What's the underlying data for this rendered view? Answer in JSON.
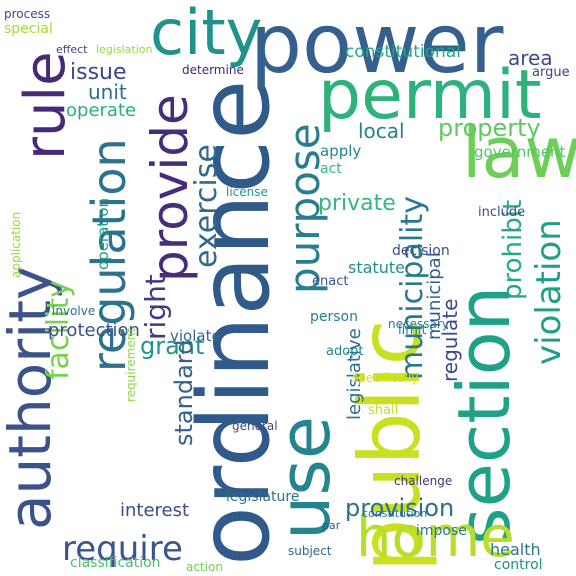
{
  "words": [
    {
      "text": "ordinance",
      "color": "#2f5a8a"
    },
    {
      "text": "power",
      "color": "#355f8d"
    },
    {
      "text": "public",
      "color": "#c8e020"
    },
    {
      "text": "section",
      "color": "#1fa187"
    },
    {
      "text": "use",
      "color": "#25848e"
    },
    {
      "text": "permit",
      "color": "#2db27d"
    },
    {
      "text": "authority",
      "color": "#3b528b"
    },
    {
      "text": "rule",
      "color": "#482878"
    },
    {
      "text": "regulation",
      "color": "#2c728e"
    },
    {
      "text": "city",
      "color": "#21918c"
    },
    {
      "text": "provide",
      "color": "#472c7a"
    },
    {
      "text": "law",
      "color": "#6ece58"
    },
    {
      "text": "purpose",
      "color": "#287d8e"
    },
    {
      "text": "home",
      "color": "#b5de2b"
    },
    {
      "text": "violation",
      "color": "#1f9e89"
    },
    {
      "text": "municipality",
      "color": "#2a788e"
    },
    {
      "text": "require",
      "color": "#39568c"
    },
    {
      "text": "right",
      "color": "#453781"
    },
    {
      "text": "facility",
      "color": "#7ad151"
    },
    {
      "text": "exercise",
      "color": "#31688e"
    },
    {
      "text": "prohibit",
      "color": "#23a983"
    },
    {
      "text": "property",
      "color": "#5ec962"
    },
    {
      "text": "issue",
      "color": "#414487"
    },
    {
      "text": "grant",
      "color": "#1f968b"
    },
    {
      "text": "standard",
      "color": "#34618d"
    },
    {
      "text": "provision",
      "color": "#2d708e"
    },
    {
      "text": "private",
      "color": "#35b779"
    },
    {
      "text": "local",
      "color": "#26828e"
    },
    {
      "text": "area",
      "color": "#3e4989"
    },
    {
      "text": "regulate",
      "color": "#3f4889"
    },
    {
      "text": "municipal",
      "color": "#365c8d"
    },
    {
      "text": "legislative",
      "color": "#2e6e8e"
    },
    {
      "text": "government",
      "color": "#54c568"
    },
    {
      "text": "constitutional",
      "color": "#22a884"
    },
    {
      "text": "unit",
      "color": "#2e6f8e"
    },
    {
      "text": "operate",
      "color": "#29af7f"
    },
    {
      "text": "protection",
      "color": "#3b528b"
    },
    {
      "text": "interest",
      "color": "#3e4a89"
    },
    {
      "text": "operation",
      "color": "#1e9c89"
    },
    {
      "text": "statute",
      "color": "#21918c"
    },
    {
      "text": "health",
      "color": "#2b758e"
    },
    {
      "text": "impose",
      "color": "#2a768e"
    },
    {
      "text": "control",
      "color": "#228d8d"
    },
    {
      "text": "violate",
      "color": "#30698e"
    },
    {
      "text": "decision",
      "color": "#3c4f8a"
    },
    {
      "text": "determine",
      "color": "#482475"
    },
    {
      "text": "application",
      "color": "#9bd93c"
    },
    {
      "text": "special",
      "color": "#a8db34"
    },
    {
      "text": "process",
      "color": "#3f4788"
    },
    {
      "text": "requirement",
      "color": "#8bd646"
    },
    {
      "text": "legislature",
      "color": "#2d708e"
    },
    {
      "text": "classification",
      "color": "#4ac16d"
    },
    {
      "text": "person",
      "color": "#287c8e"
    },
    {
      "text": "apply",
      "color": "#25848e"
    },
    {
      "text": "act",
      "color": "#38b977"
    },
    {
      "text": "limit",
      "color": "#27808e"
    },
    {
      "text": "adopt",
      "color": "#24878e"
    },
    {
      "text": "enact",
      "color": "#3a548c"
    },
    {
      "text": "license",
      "color": "#1f988b"
    },
    {
      "text": "include",
      "color": "#3d4d8a"
    },
    {
      "text": "argue",
      "color": "#433e85"
    },
    {
      "text": "shall",
      "color": "#c0df25"
    },
    {
      "text": "subject",
      "color": "#31678e"
    },
    {
      "text": "general",
      "color": "#404688"
    },
    {
      "text": "action",
      "color": "#75d054"
    },
    {
      "text": "involve",
      "color": "#2c718e"
    },
    {
      "text": "specifically",
      "color": "#d2e21b"
    },
    {
      "text": "challenge",
      "color": "#46337e"
    },
    {
      "text": "necessary",
      "color": "#297a8e"
    },
    {
      "text": "constitution",
      "color": "#2b748e"
    },
    {
      "text": "par",
      "color": "#3b528b"
    },
    {
      "text": "legislation",
      "color": "#95d840"
    },
    {
      "text": "effect",
      "color": "#424186"
    }
  ]
}
